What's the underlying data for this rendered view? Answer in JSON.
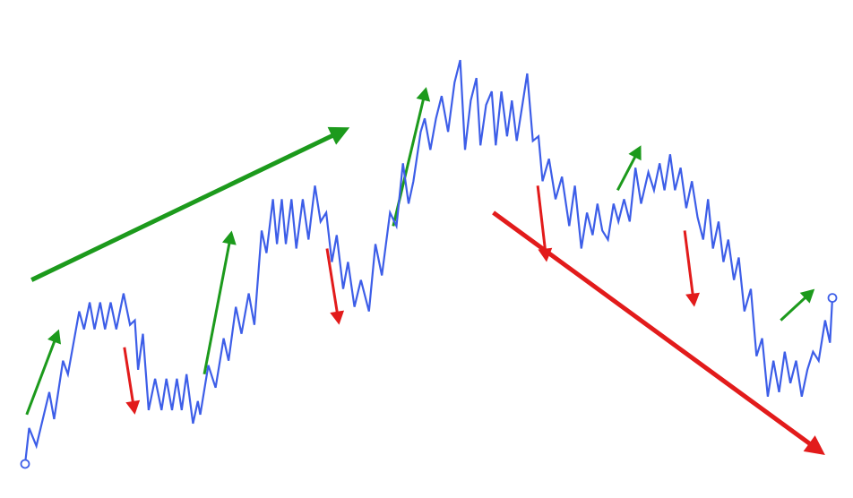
{
  "chart_data": {
    "type": "line",
    "title": "",
    "xlabel": "",
    "ylabel": "",
    "grid": false,
    "legend": "none",
    "xlim": [
      0,
      100
    ],
    "ylim": [
      0,
      100
    ],
    "colors": {
      "price_line": "#3d5ee8",
      "uptrend_arrow": "#1c9a1c",
      "downtrend_arrow": "#e21b1b",
      "endpoint_marker": "#3d5ee8",
      "background": "#ffffff"
    },
    "series": [
      {
        "values": [
          [
            0,
            3
          ],
          [
            0.5,
            11
          ],
          [
            1.4,
            7
          ],
          [
            3,
            19
          ],
          [
            3.6,
            13
          ],
          [
            4.7,
            26
          ],
          [
            5.3,
            23
          ],
          [
            6.7,
            37
          ],
          [
            7.3,
            33
          ],
          [
            8,
            39
          ],
          [
            8.6,
            33
          ],
          [
            9.3,
            39
          ],
          [
            9.9,
            33
          ],
          [
            10.6,
            39
          ],
          [
            11.3,
            33
          ],
          [
            12.2,
            41
          ],
          [
            13,
            34
          ],
          [
            13.6,
            35
          ],
          [
            14,
            24
          ],
          [
            14.6,
            32
          ],
          [
            15.3,
            15
          ],
          [
            16.1,
            22
          ],
          [
            16.9,
            15
          ],
          [
            17.5,
            22
          ],
          [
            18.2,
            15
          ],
          [
            18.8,
            22
          ],
          [
            19.4,
            15
          ],
          [
            20,
            23
          ],
          [
            20.8,
            12
          ],
          [
            21.4,
            17
          ],
          [
            21.7,
            14
          ],
          [
            22.7,
            25
          ],
          [
            23.6,
            20
          ],
          [
            24.6,
            31
          ],
          [
            25.2,
            26
          ],
          [
            26.1,
            38
          ],
          [
            26.8,
            32
          ],
          [
            27.7,
            41
          ],
          [
            28.4,
            34
          ],
          [
            29.3,
            55
          ],
          [
            29.9,
            50
          ],
          [
            30.7,
            62
          ],
          [
            31.2,
            52
          ],
          [
            31.8,
            62
          ],
          [
            32.3,
            52
          ],
          [
            33,
            62
          ],
          [
            33.6,
            51
          ],
          [
            34.4,
            62
          ],
          [
            35.1,
            53
          ],
          [
            35.9,
            65
          ],
          [
            36.6,
            57
          ],
          [
            37.3,
            59
          ],
          [
            38,
            48
          ],
          [
            38.6,
            54
          ],
          [
            39.4,
            42
          ],
          [
            40,
            48
          ],
          [
            40.8,
            38
          ],
          [
            41.6,
            44
          ],
          [
            42.6,
            37
          ],
          [
            43.4,
            52
          ],
          [
            44.2,
            45
          ],
          [
            45.2,
            59
          ],
          [
            46,
            56
          ],
          [
            46.8,
            70
          ],
          [
            47.5,
            61
          ],
          [
            48.1,
            66
          ],
          [
            49,
            77
          ],
          [
            49.5,
            80
          ],
          [
            50.2,
            73
          ],
          [
            50.9,
            80
          ],
          [
            51.6,
            85
          ],
          [
            52.4,
            77
          ],
          [
            53.2,
            88
          ],
          [
            53.9,
            93
          ],
          [
            54.5,
            73
          ],
          [
            55.2,
            84
          ],
          [
            55.9,
            89
          ],
          [
            56.4,
            74
          ],
          [
            57.1,
            83
          ],
          [
            57.8,
            86
          ],
          [
            58.3,
            74
          ],
          [
            59,
            86
          ],
          [
            59.7,
            76
          ],
          [
            60.3,
            84
          ],
          [
            60.9,
            75
          ],
          [
            61.6,
            83
          ],
          [
            62.2,
            90
          ],
          [
            62.9,
            75
          ],
          [
            63.6,
            76
          ],
          [
            64.1,
            66
          ],
          [
            64.9,
            71
          ],
          [
            65.7,
            62
          ],
          [
            66.5,
            67
          ],
          [
            67.4,
            56
          ],
          [
            68.1,
            65
          ],
          [
            68.9,
            51
          ],
          [
            69.6,
            59
          ],
          [
            70.3,
            54
          ],
          [
            70.9,
            61
          ],
          [
            71.5,
            55
          ],
          [
            72.2,
            53
          ],
          [
            72.9,
            61
          ],
          [
            73.5,
            57
          ],
          [
            74.2,
            62
          ],
          [
            74.9,
            57
          ],
          [
            75.6,
            69
          ],
          [
            76.3,
            61
          ],
          [
            77.2,
            68
          ],
          [
            77.9,
            64
          ],
          [
            78.6,
            70
          ],
          [
            79.2,
            64
          ],
          [
            79.9,
            72
          ],
          [
            80.5,
            64
          ],
          [
            81.2,
            69
          ],
          [
            81.9,
            60
          ],
          [
            82.6,
            66
          ],
          [
            83.3,
            58
          ],
          [
            84,
            53
          ],
          [
            84.6,
            62
          ],
          [
            85.2,
            51
          ],
          [
            85.9,
            57
          ],
          [
            86.5,
            48
          ],
          [
            87.1,
            53
          ],
          [
            87.8,
            44
          ],
          [
            88.4,
            49
          ],
          [
            89.1,
            37
          ],
          [
            89.9,
            42
          ],
          [
            90.6,
            27
          ],
          [
            91.3,
            31
          ],
          [
            92,
            18
          ],
          [
            92.7,
            26
          ],
          [
            93.4,
            19
          ],
          [
            94.1,
            28
          ],
          [
            94.8,
            21
          ],
          [
            95.5,
            26
          ],
          [
            96.2,
            18
          ],
          [
            96.9,
            24
          ],
          [
            97.6,
            28
          ],
          [
            98.3,
            26
          ],
          [
            99.1,
            35
          ],
          [
            99.7,
            30
          ],
          [
            100,
            40
          ]
        ]
      }
    ],
    "annotations": [
      {
        "kind": "arrow",
        "direction": "up",
        "from": [
          0.2,
          14
        ],
        "to": [
          4.2,
          33
        ]
      },
      {
        "kind": "arrow",
        "direction": "down",
        "from": [
          12.3,
          29
        ],
        "to": [
          13.6,
          14
        ]
      },
      {
        "kind": "arrow",
        "direction": "up",
        "from": [
          0.8,
          44
        ],
        "to": [
          40.2,
          78
        ]
      },
      {
        "kind": "arrow",
        "direction": "up",
        "from": [
          22.2,
          23
        ],
        "to": [
          25.6,
          55
        ]
      },
      {
        "kind": "arrow",
        "direction": "down",
        "from": [
          37.4,
          51
        ],
        "to": [
          38.9,
          34
        ]
      },
      {
        "kind": "arrow",
        "direction": "up",
        "from": [
          45.6,
          56
        ],
        "to": [
          49.7,
          87
        ]
      },
      {
        "kind": "arrow",
        "direction": "down",
        "from": [
          63.5,
          65
        ],
        "to": [
          64.6,
          48
        ]
      },
      {
        "kind": "arrow",
        "direction": "up",
        "from": [
          73.4,
          64
        ],
        "to": [
          76.3,
          74
        ]
      },
      {
        "kind": "arrow",
        "direction": "down",
        "from": [
          58,
          59
        ],
        "to": [
          99.1,
          5
        ]
      },
      {
        "kind": "arrow",
        "direction": "down",
        "from": [
          81.7,
          55
        ],
        "to": [
          82.9,
          38
        ]
      },
      {
        "kind": "arrow",
        "direction": "up",
        "from": [
          93.6,
          35
        ],
        "to": [
          97.8,
          42
        ]
      }
    ]
  }
}
